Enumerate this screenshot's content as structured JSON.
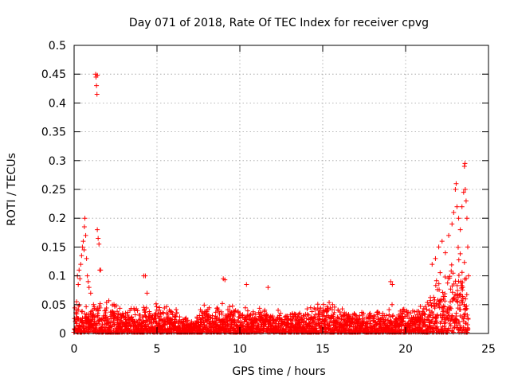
{
  "chart_data": {
    "type": "scatter",
    "title": "Day 071 of 2018, Rate Of TEC Index for receiver cpvg",
    "xlabel": "GPS time / hours",
    "ylabel": "ROTI / TECUs",
    "xlim": [
      0,
      25
    ],
    "ylim": [
      0,
      0.5
    ],
    "xticks": [
      0,
      5,
      10,
      15,
      20,
      25
    ],
    "xtick_labels": [
      "0",
      "5",
      "10",
      "15",
      "20",
      "25"
    ],
    "yticks": [
      0,
      0.05,
      0.1,
      0.15,
      0.2,
      0.25,
      0.3,
      0.35,
      0.4,
      0.45,
      0.5
    ],
    "ytick_labels": [
      "0",
      "0.05",
      "0.1",
      "0.15",
      "0.2",
      "0.25",
      "0.3",
      "0.35",
      "0.4",
      "0.45",
      "0.5"
    ],
    "grid": true,
    "marker": "+",
    "color": "#ff0000",
    "series": [
      {
        "name": "ROTI",
        "points": [
          [
            0.15,
            0.055
          ],
          [
            0.2,
            0.1
          ],
          [
            0.25,
            0.085
          ],
          [
            0.3,
            0.11
          ],
          [
            0.35,
            0.095
          ],
          [
            0.4,
            0.12
          ],
          [
            0.45,
            0.135
          ],
          [
            0.5,
            0.15
          ],
          [
            0.55,
            0.16
          ],
          [
            0.6,
            0.145
          ],
          [
            0.62,
            0.185
          ],
          [
            0.65,
            0.2
          ],
          [
            0.7,
            0.17
          ],
          [
            0.75,
            0.13
          ],
          [
            0.8,
            0.1
          ],
          [
            0.85,
            0.09
          ],
          [
            0.9,
            0.08
          ],
          [
            1.0,
            0.07
          ],
          [
            1.3,
            0.45
          ],
          [
            1.32,
            0.445
          ],
          [
            1.35,
            0.43
          ],
          [
            1.38,
            0.415
          ],
          [
            1.4,
            0.448
          ],
          [
            1.4,
            0.18
          ],
          [
            1.45,
            0.165
          ],
          [
            1.5,
            0.155
          ],
          [
            1.55,
            0.11
          ],
          [
            1.6,
            0.11
          ],
          [
            4.2,
            0.1
          ],
          [
            4.3,
            0.1
          ],
          [
            4.4,
            0.07
          ],
          [
            9.0,
            0.095
          ],
          [
            9.1,
            0.093
          ],
          [
            10.4,
            0.085
          ],
          [
            11.7,
            0.08
          ],
          [
            19.1,
            0.09
          ],
          [
            19.2,
            0.085
          ],
          [
            21.6,
            0.12
          ],
          [
            21.8,
            0.13
          ],
          [
            22.0,
            0.15
          ],
          [
            22.2,
            0.16
          ],
          [
            22.4,
            0.14
          ],
          [
            22.6,
            0.17
          ],
          [
            22.8,
            0.19
          ],
          [
            22.9,
            0.21
          ],
          [
            23.0,
            0.25
          ],
          [
            23.05,
            0.26
          ],
          [
            23.1,
            0.22
          ],
          [
            23.2,
            0.2
          ],
          [
            23.3,
            0.18
          ],
          [
            23.4,
            0.22
          ],
          [
            23.5,
            0.245
          ],
          [
            23.55,
            0.29
          ],
          [
            23.58,
            0.295
          ],
          [
            23.6,
            0.25
          ],
          [
            23.65,
            0.23
          ],
          [
            23.7,
            0.2
          ],
          [
            23.75,
            0.15
          ],
          [
            23.8,
            0.1
          ]
        ]
      }
    ],
    "dense_band": {
      "note": "dense background points; fill_level is the typical upper value of the dense band at each hour",
      "x_range": [
        0,
        23.8
      ],
      "profile": [
        [
          0,
          0.045
        ],
        [
          1,
          0.045
        ],
        [
          2,
          0.05
        ],
        [
          3,
          0.045
        ],
        [
          4,
          0.04
        ],
        [
          5,
          0.045
        ],
        [
          6,
          0.04
        ],
        [
          7,
          0.02
        ],
        [
          8,
          0.05
        ],
        [
          9,
          0.045
        ],
        [
          10,
          0.04
        ],
        [
          11,
          0.04
        ],
        [
          12,
          0.035
        ],
        [
          13,
          0.035
        ],
        [
          14,
          0.04
        ],
        [
          15,
          0.05
        ],
        [
          16,
          0.045
        ],
        [
          17,
          0.03
        ],
        [
          18,
          0.035
        ],
        [
          19,
          0.045
        ],
        [
          20,
          0.04
        ],
        [
          21,
          0.045
        ],
        [
          21.5,
          0.06
        ],
        [
          22,
          0.09
        ],
        [
          22.5,
          0.1
        ],
        [
          23,
          0.14
        ],
        [
          23.5,
          0.12
        ],
        [
          23.8,
          0.05
        ]
      ]
    }
  }
}
